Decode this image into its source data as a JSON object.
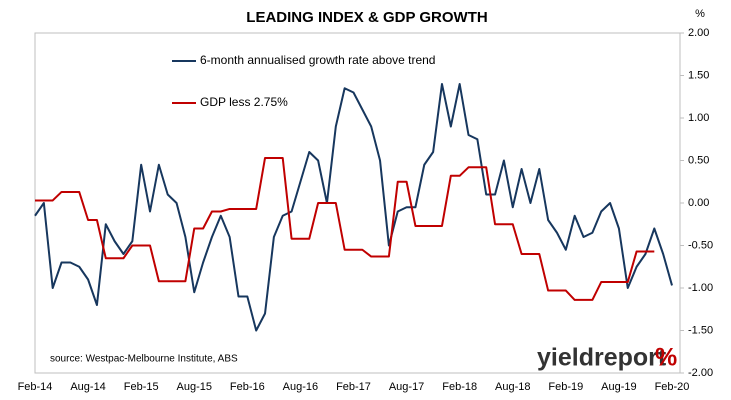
{
  "chart_data": {
    "type": "line",
    "title": "LEADING INDEX & GDP GROWTH",
    "y_unit": "%",
    "source": "source: Westpac-Melbourne Institute, ABS",
    "logo": {
      "text": "yieldreport",
      "symbol": "%"
    },
    "categories": [
      "Feb-14",
      null,
      null,
      null,
      null,
      null,
      "Aug-14",
      null,
      null,
      null,
      null,
      null,
      "Feb-15",
      null,
      null,
      null,
      null,
      null,
      "Aug-15",
      null,
      null,
      null,
      null,
      null,
      "Feb-16",
      null,
      null,
      null,
      null,
      null,
      "Aug-16",
      null,
      null,
      null,
      null,
      null,
      "Feb-17",
      null,
      null,
      null,
      null,
      null,
      "Aug-17",
      null,
      null,
      null,
      null,
      null,
      "Feb-18",
      null,
      null,
      null,
      null,
      null,
      "Aug-18",
      null,
      null,
      null,
      null,
      null,
      "Feb-19",
      null,
      null,
      null,
      null,
      null,
      "Aug-19",
      null,
      null,
      null,
      null,
      null,
      "Feb-20"
    ],
    "series": [
      {
        "name": "6-month annualised growth rate above trend",
        "color": "#17375e",
        "axis": "y2",
        "values": [
          -0.15,
          0.0,
          -1.0,
          -0.7,
          -0.7,
          -0.75,
          -0.9,
          -1.2,
          -0.25,
          -0.45,
          -0.6,
          -0.45,
          0.45,
          -0.1,
          0.45,
          0.1,
          0.0,
          -0.4,
          -1.05,
          -0.7,
          -0.4,
          -0.15,
          -0.4,
          -1.1,
          -1.1,
          -1.5,
          -1.3,
          -0.4,
          -0.15,
          -0.1,
          0.25,
          0.6,
          0.5,
          0.0,
          0.9,
          1.35,
          1.3,
          1.1,
          0.9,
          0.5,
          -0.5,
          -0.1,
          -0.05,
          -0.05,
          0.45,
          0.6,
          1.4,
          0.9,
          1.4,
          0.8,
          0.75,
          0.1,
          0.1,
          0.5,
          -0.05,
          0.4,
          0.0,
          0.4,
          -0.2,
          -0.35,
          -0.55,
          -0.15,
          -0.4,
          -0.35,
          -0.1,
          0.0,
          -0.3,
          -1.0,
          -0.75,
          -0.6,
          -0.3,
          -0.6,
          -0.97
        ]
      },
      {
        "name": "GDP less 2.75%",
        "color": "#c00000",
        "axis": "y2",
        "values": [
          0.03,
          0.03,
          0.03,
          0.13,
          0.13,
          0.13,
          -0.2,
          -0.2,
          -0.65,
          -0.65,
          -0.65,
          -0.5,
          -0.5,
          -0.5,
          -0.92,
          -0.92,
          -0.92,
          -0.92,
          -0.3,
          -0.3,
          -0.1,
          -0.1,
          -0.07,
          -0.07,
          -0.07,
          -0.07,
          0.53,
          0.53,
          0.53,
          -0.42,
          -0.42,
          -0.42,
          0.0,
          0.0,
          0.0,
          -0.55,
          -0.55,
          -0.55,
          -0.63,
          -0.63,
          -0.63,
          0.25,
          0.25,
          -0.27,
          -0.27,
          -0.27,
          -0.27,
          0.32,
          0.32,
          0.42,
          0.42,
          0.42,
          -0.25,
          -0.25,
          -0.25,
          -0.6,
          -0.6,
          -0.6,
          -1.03,
          -1.03,
          -1.03,
          -1.14,
          -1.14,
          -1.14,
          -0.93,
          -0.93,
          -0.93,
          -0.93,
          -0.57,
          -0.57,
          -0.57,
          null,
          null
        ]
      }
    ],
    "y2lim": [
      -2,
      2
    ],
    "y2ticks": [
      {
        "value": 2,
        "label": "2.00"
      },
      {
        "value": 1.5,
        "label": "1.50"
      },
      {
        "value": 1,
        "label": "1.00"
      },
      {
        "value": 0.5,
        "label": "0.50"
      },
      {
        "value": 0,
        "label": "0.00"
      },
      {
        "value": -0.5,
        "label": "-0.50"
      },
      {
        "value": -1,
        "label": "-1.00"
      },
      {
        "value": -1.5,
        "label": "-1.50"
      },
      {
        "value": -2,
        "label": "-2.00"
      }
    ]
  }
}
